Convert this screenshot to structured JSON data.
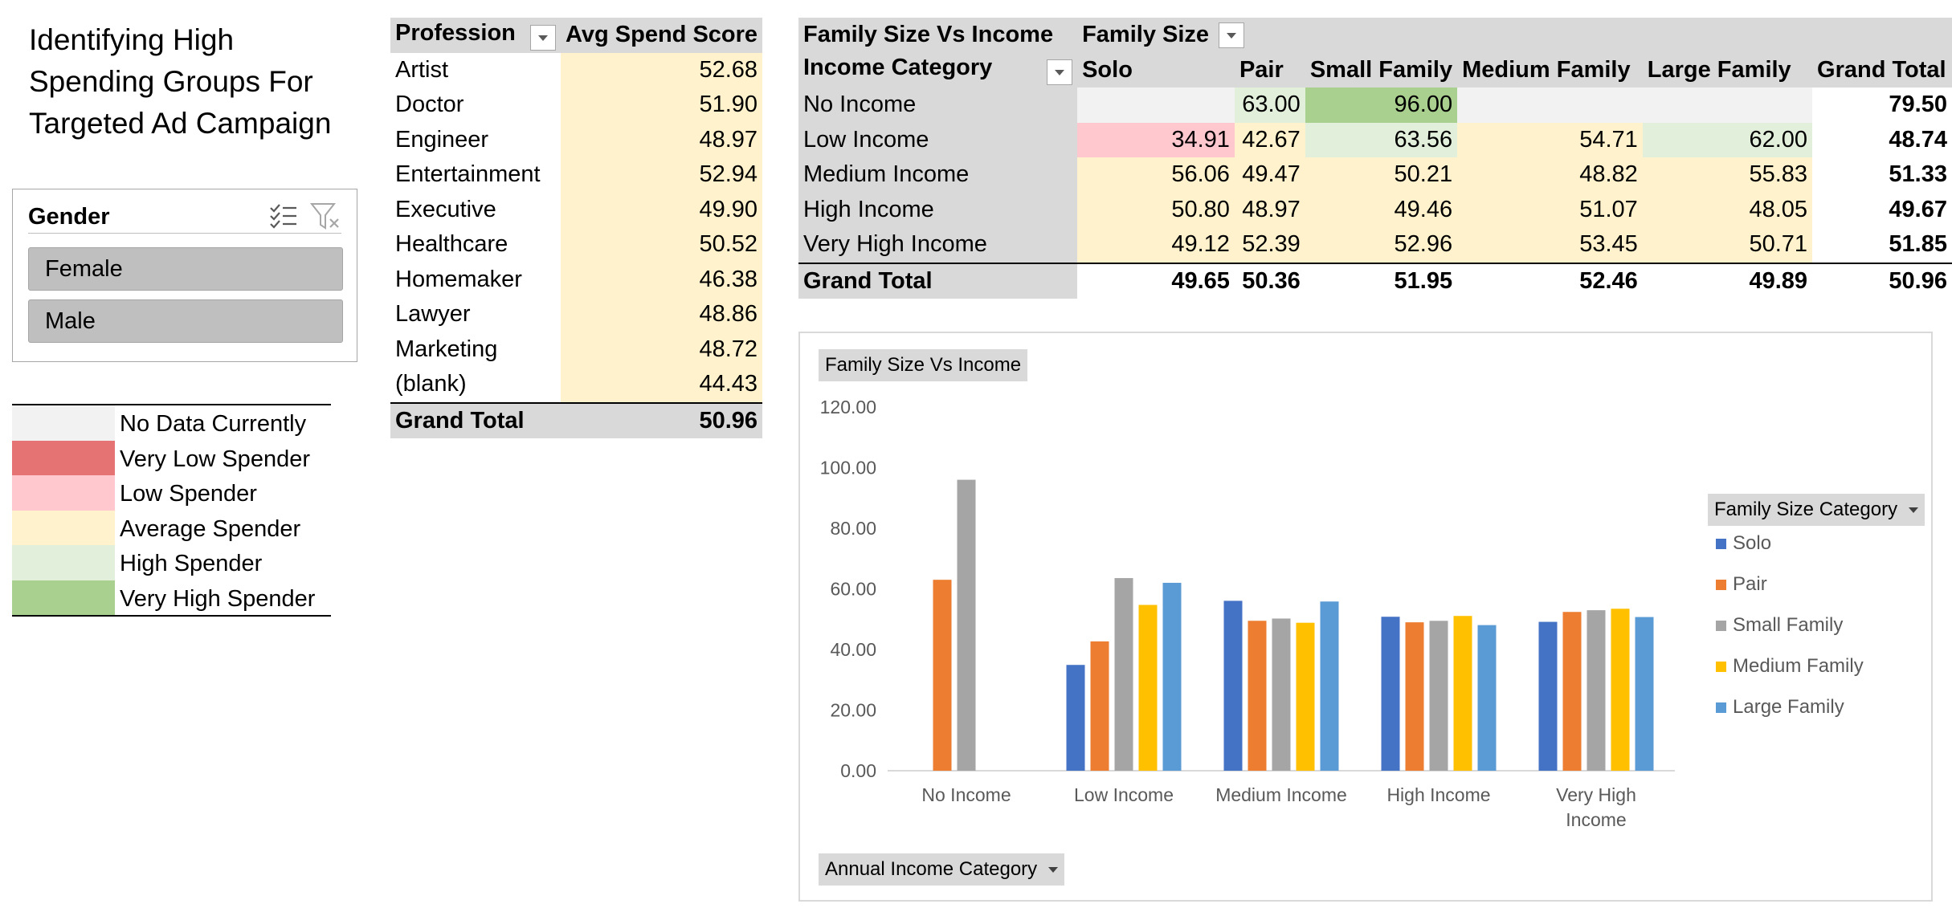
{
  "title": [
    "Identifying High",
    "Spending Groups For",
    "Targeted Ad Campaign"
  ],
  "slicer": {
    "title": "Gender",
    "items": [
      "Female",
      "Male"
    ]
  },
  "legend": [
    {
      "label": "No Data Currently",
      "color": "#f2f2f2"
    },
    {
      "label": "Very Low Spender",
      "color": "#e67373"
    },
    {
      "label": "Low Spender",
      "color": "#ffc7ce"
    },
    {
      "label": "Average Spender",
      "color": "#fff2cc"
    },
    {
      "label": "High Spender",
      "color": "#e2efda"
    },
    {
      "label": "Very High Spender",
      "color": "#a9d08e"
    }
  ],
  "profession_table": {
    "header_label": "Profession",
    "header_value": "Avg Spend Score",
    "rows": [
      {
        "label": "Artist",
        "value": "52.68"
      },
      {
        "label": "Doctor",
        "value": "51.90"
      },
      {
        "label": "Engineer",
        "value": "48.97"
      },
      {
        "label": "Entertainment",
        "value": "52.94"
      },
      {
        "label": "Executive",
        "value": "49.90"
      },
      {
        "label": "Healthcare",
        "value": "50.52"
      },
      {
        "label": "Homemaker",
        "value": "46.38"
      },
      {
        "label": "Lawyer",
        "value": "48.86"
      },
      {
        "label": "Marketing",
        "value": "48.72"
      },
      {
        "label": "(blank)",
        "value": "44.43"
      }
    ],
    "total_label": "Grand Total",
    "total_value": "50.96"
  },
  "family_table": {
    "title": "Family Size Vs Income",
    "column_field": "Family Size",
    "row_field": "Income Category",
    "columns": [
      "Solo",
      "Pair",
      "Small Family",
      "Medium Family",
      "Large Family",
      "Grand Total"
    ],
    "rows": [
      {
        "label": "No Income",
        "cells": [
          "",
          "63.00",
          "96.00",
          "",
          "",
          "79.50"
        ],
        "colors": [
          "#f2f2f2",
          "#e2efda",
          "#a9d08e",
          "#f2f2f2",
          "#f2f2f2",
          ""
        ]
      },
      {
        "label": "Low Income",
        "cells": [
          "34.91",
          "42.67",
          "63.56",
          "54.71",
          "62.00",
          "48.74"
        ],
        "colors": [
          "#ffc7ce",
          "#fff2cc",
          "#e2efda",
          "#fff2cc",
          "#e2efda",
          ""
        ]
      },
      {
        "label": "Medium Income",
        "cells": [
          "56.06",
          "49.47",
          "50.21",
          "48.82",
          "55.83",
          "51.33"
        ],
        "colors": [
          "#fff2cc",
          "#fff2cc",
          "#fff2cc",
          "#fff2cc",
          "#fff2cc",
          ""
        ]
      },
      {
        "label": "High Income",
        "cells": [
          "50.80",
          "48.97",
          "49.46",
          "51.07",
          "48.05",
          "49.67"
        ],
        "colors": [
          "#fff2cc",
          "#fff2cc",
          "#fff2cc",
          "#fff2cc",
          "#fff2cc",
          ""
        ]
      },
      {
        "label": "Very High Income",
        "cells": [
          "49.12",
          "52.39",
          "52.96",
          "53.45",
          "50.71",
          "51.85"
        ],
        "colors": [
          "#fff2cc",
          "#fff2cc",
          "#fff2cc",
          "#fff2cc",
          "#fff2cc",
          ""
        ]
      }
    ],
    "total": {
      "label": "Grand Total",
      "cells": [
        "49.65",
        "50.36",
        "51.95",
        "52.46",
        "49.89",
        "50.96"
      ]
    }
  },
  "chart_data": {
    "type": "bar",
    "title": "Family Size Vs Income",
    "categories": [
      "No Income",
      "Low Income",
      "Medium Income",
      "High Income",
      "Very High Income"
    ],
    "category_lines": [
      [
        "No Income"
      ],
      [
        "Low Income"
      ],
      [
        "Medium Income"
      ],
      [
        "High Income"
      ],
      [
        "Very High",
        "Income"
      ]
    ],
    "series": [
      {
        "name": "Solo",
        "color": "#4472c4",
        "values": [
          null,
          34.91,
          56.06,
          50.8,
          49.12
        ]
      },
      {
        "name": "Pair",
        "color": "#ed7d31",
        "values": [
          63.0,
          42.67,
          49.47,
          48.97,
          52.39
        ]
      },
      {
        "name": "Small Family",
        "color": "#a5a5a5",
        "values": [
          96.0,
          63.56,
          50.21,
          49.46,
          52.96
        ]
      },
      {
        "name": "Medium Family",
        "color": "#ffc000",
        "values": [
          null,
          54.71,
          48.82,
          51.07,
          53.45
        ]
      },
      {
        "name": "Large Family",
        "color": "#5b9bd5",
        "values": [
          null,
          62.0,
          55.83,
          48.05,
          50.71
        ]
      }
    ],
    "yticks": [
      "0.00",
      "20.00",
      "40.00",
      "60.00",
      "80.00",
      "100.00",
      "120.00"
    ],
    "ylim": [
      0,
      120
    ],
    "legend_title": "Family Size Category",
    "axis_field_button": "Annual Income Category",
    "legend_position": "right",
    "grid": false
  }
}
